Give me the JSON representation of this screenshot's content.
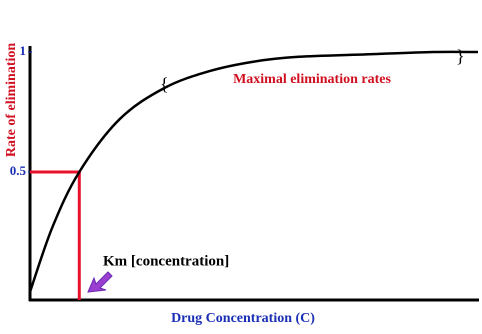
{
  "chart_data": {
    "type": "line",
    "x_label": "Drug Concentration (C)",
    "y_label": "Rate of elimination",
    "annotations": [
      "Maximal elimination rates",
      "Km [concentration]"
    ],
    "x": [
      0,
      5,
      11,
      20,
      30,
      40,
      50,
      60,
      75,
      90,
      100
    ],
    "series": [
      {
        "color": "#000000",
        "values": [
          0,
          0.27,
          0.5,
          0.72,
          0.85,
          0.92,
          0.96,
          0.98,
          0.99,
          1,
          1
        ]
      }
    ],
    "xlim": [
      0,
      100
    ],
    "ylim": [
      0,
      1
    ],
    "yticks": [
      0.5,
      1
    ],
    "marker_color": "#e8102a"
  }
}
